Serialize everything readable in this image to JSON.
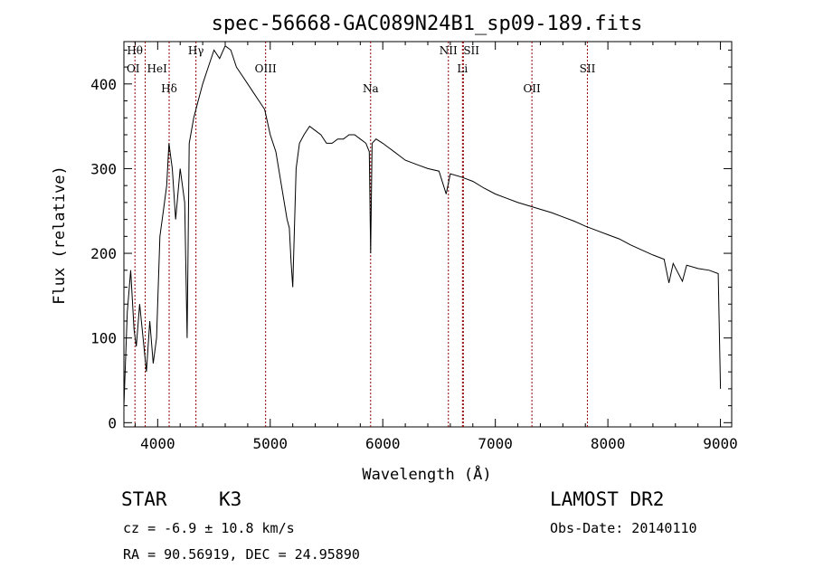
{
  "chart_data": {
    "type": "line",
    "title": "spec-56668-GAC089N24B1_sp09-189.fits",
    "xlabel": "Wavelength (Å)",
    "ylabel": "Flux (relative)",
    "xlim": [
      3700,
      9100
    ],
    "ylim": [
      -5,
      450
    ],
    "xticks": [
      4000,
      5000,
      6000,
      7000,
      8000,
      9000
    ],
    "yticks": [
      0,
      100,
      200,
      300,
      400
    ],
    "grid": false,
    "line_color": "#000000",
    "marker_color": "#8b0000",
    "lines": [
      {
        "label": "Hθ",
        "wavelength": 3798
      },
      {
        "label": "OI",
        "wavelength": 3889
      },
      {
        "label": "HeI",
        "wavelength": 3889
      },
      {
        "label": "Hδ",
        "wavelength": 4102
      },
      {
        "label": "Hγ",
        "wavelength": 4340
      },
      {
        "label": "OIII",
        "wavelength": 4959
      },
      {
        "label": "Na",
        "wavelength": 5892
      },
      {
        "label": "NII",
        "wavelength": 6583
      },
      {
        "label": "SII",
        "wavelength": 6716
      },
      {
        "label": "Li",
        "wavelength": 6708
      },
      {
        "label": "OII",
        "wavelength": 7325
      },
      {
        "label": "SII",
        "wavelength": 7818
      }
    ],
    "series": [
      {
        "x": [
          3700,
          3730,
          3760,
          3790,
          3810,
          3840,
          3870,
          3900,
          3930,
          3960,
          3990,
          4020,
          4050,
          4080,
          4100,
          4130,
          4160,
          4200,
          4240,
          4262,
          4280,
          4320,
          4360,
          4400,
          4450,
          4500,
          4550,
          4600,
          4650,
          4700,
          4750,
          4800,
          4850,
          4900,
          4950,
          5000,
          5050,
          5100,
          5150,
          5170,
          5185,
          5200,
          5230,
          5260,
          5300,
          5350,
          5400,
          5450,
          5500,
          5550,
          5600,
          5650,
          5700,
          5750,
          5800,
          5850,
          5880,
          5892,
          5905,
          5940,
          6000,
          6050,
          6100,
          6150,
          6200,
          6300,
          6400,
          6500,
          6563,
          6600,
          6700,
          6800,
          6900,
          7000,
          7100,
          7200,
          7300,
          7400,
          7500,
          7600,
          7700,
          7800,
          7900,
          8000,
          8100,
          8200,
          8300,
          8400,
          8500,
          8542,
          8580,
          8662,
          8700,
          8800,
          8900,
          8980,
          9000
        ],
        "y": [
          20,
          130,
          180,
          110,
          90,
          140,
          100,
          60,
          120,
          70,
          100,
          220,
          250,
          280,
          330,
          300,
          240,
          300,
          260,
          100,
          330,
          360,
          380,
          400,
          420,
          440,
          430,
          445,
          440,
          420,
          410,
          400,
          390,
          380,
          370,
          340,
          320,
          280,
          240,
          230,
          190,
          160,
          300,
          330,
          340,
          350,
          345,
          340,
          330,
          330,
          335,
          335,
          340,
          340,
          335,
          330,
          320,
          200,
          330,
          335,
          330,
          325,
          320,
          315,
          310,
          305,
          300,
          297,
          270,
          294,
          290,
          285,
          277,
          270,
          265,
          260,
          256,
          252,
          248,
          243,
          238,
          232,
          227,
          222,
          217,
          210,
          204,
          198,
          193,
          165,
          188,
          167,
          186,
          182,
          180,
          176,
          40
        ]
      }
    ]
  },
  "info": {
    "object_class": "STAR",
    "subclass": "K3",
    "survey": "LAMOST DR2",
    "cz": "cz = -6.9 ± 10.8 km/s",
    "obs_date": "Obs-Date: 20140110",
    "radec": "RA =  90.56919, DEC =  24.95890"
  }
}
